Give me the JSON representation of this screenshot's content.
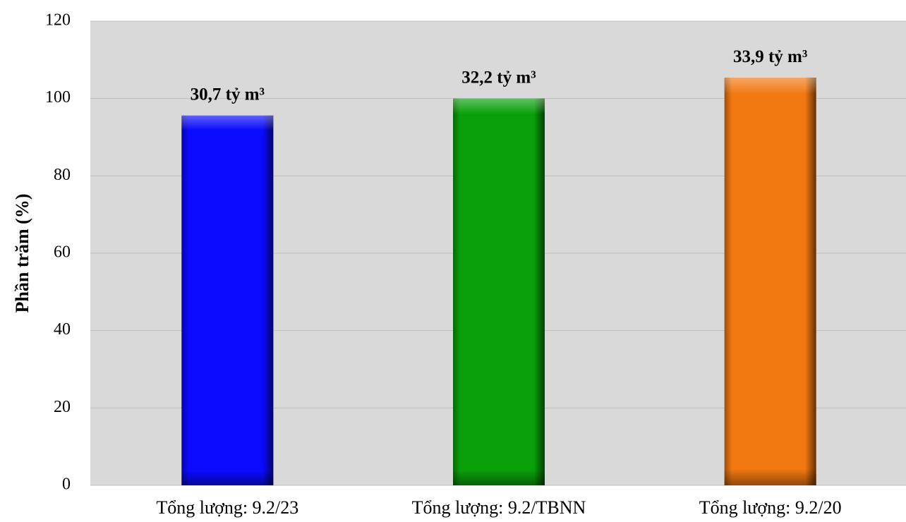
{
  "chart_data": {
    "type": "bar",
    "y_axis_title": "Phần trăm (%)",
    "categories": [
      "Tổng lượng: 9.2/23",
      "Tổng lượng: 9.2/TBNN",
      "Tổng lượng: 9.2/20"
    ],
    "values": [
      95.6,
      100,
      105.4
    ],
    "colors": [
      "#0a0aff",
      "#0aa00a",
      "#f27812"
    ],
    "annotations": [
      "30,7 tỷ m³",
      "32,2 tỷ m³",
      "33,9 tỷ m³"
    ],
    "ylim": [
      0,
      120
    ],
    "yticks": [
      0,
      20,
      40,
      60,
      80,
      100,
      120
    ],
    "grid": true
  }
}
